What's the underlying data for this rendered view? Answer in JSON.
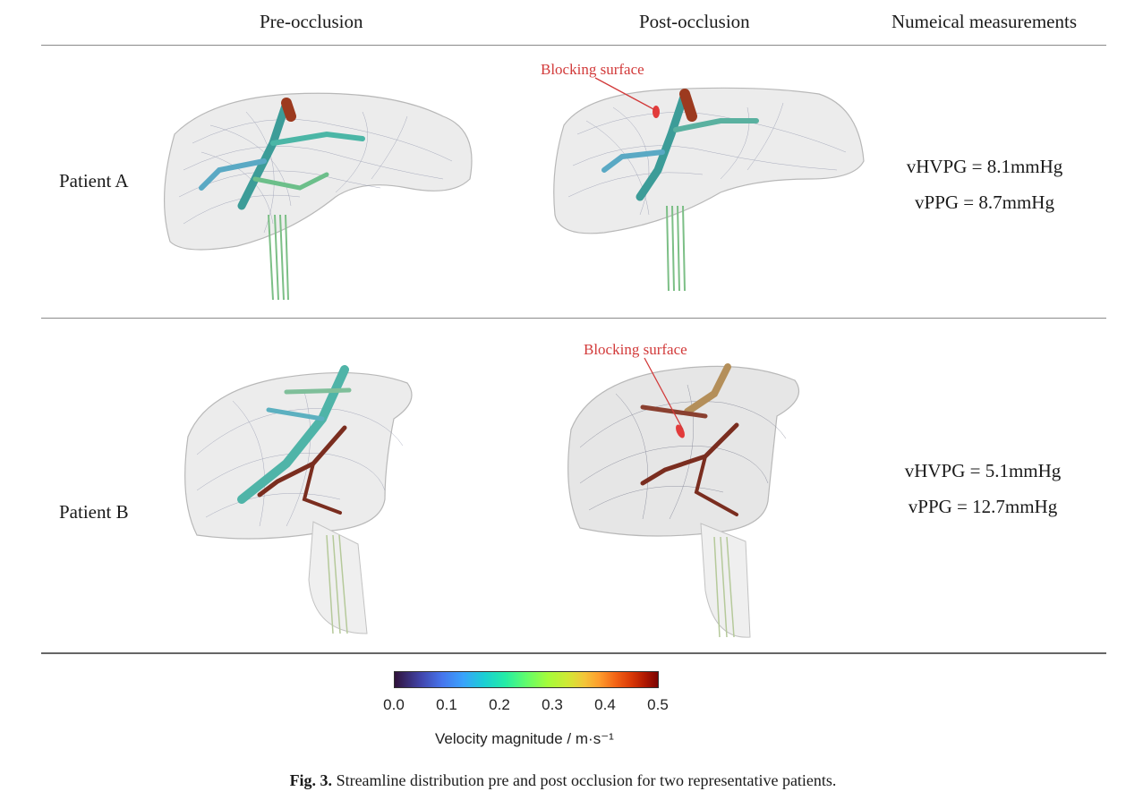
{
  "headers": {
    "pre": "Pre-occlusion",
    "post": "Post-occlusion",
    "measurements": "Numeical measurements"
  },
  "patients": [
    {
      "name": "Patient A",
      "blocking_label": "Blocking surface",
      "vHVPG": "vHVPG = 8.1mmHg",
      "vPPG": "vPPG = 8.7mmHg"
    },
    {
      "name": "Patient B",
      "blocking_label": "Blocking surface",
      "vHVPG": "vHVPG = 5.1mmHg",
      "vPPG": "vPPG = 12.7mmHg"
    }
  ],
  "colorbar": {
    "ticks": [
      "0.0",
      "0.1",
      "0.2",
      "0.3",
      "0.4",
      "0.5"
    ],
    "title": "Velocity magnitude / m·s⁻¹",
    "min": 0.0,
    "max": 0.5
  },
  "caption": {
    "label": "Fig. 3.",
    "text": "Streamline distribution pre and post occlusion for two representative patients."
  },
  "colors": {
    "blocking": "#d23a3a",
    "rule": "#8a8a8a"
  }
}
